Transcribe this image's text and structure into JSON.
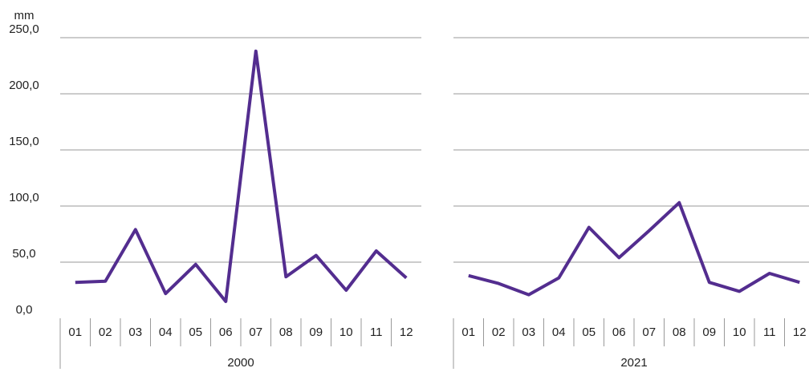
{
  "chart_data": {
    "type": "line",
    "y_label": "mm",
    "color": "#532d8f",
    "ylim": [
      0,
      250
    ],
    "yticks": [
      {
        "value": 0,
        "label": "0,0"
      },
      {
        "value": 50,
        "label": "50,0"
      },
      {
        "value": 100,
        "label": "100,0"
      },
      {
        "value": 150,
        "label": "150,0"
      },
      {
        "value": 200,
        "label": "200,0"
      },
      {
        "value": 250,
        "label": "250,0"
      }
    ],
    "grid": true,
    "panels": [
      {
        "name": "2000",
        "categories": [
          "01",
          "02",
          "03",
          "04",
          "05",
          "06",
          "07",
          "08",
          "09",
          "10",
          "11",
          "12"
        ],
        "values": [
          32,
          33,
          79,
          22,
          48,
          15,
          238,
          37,
          56,
          25,
          60,
          36
        ]
      },
      {
        "name": "2021",
        "categories": [
          "01",
          "02",
          "03",
          "04",
          "05",
          "06",
          "07",
          "08",
          "09",
          "10",
          "11",
          "12"
        ],
        "values": [
          38,
          31,
          21,
          36,
          81,
          54,
          78,
          103,
          32,
          24,
          40,
          32
        ]
      }
    ]
  }
}
